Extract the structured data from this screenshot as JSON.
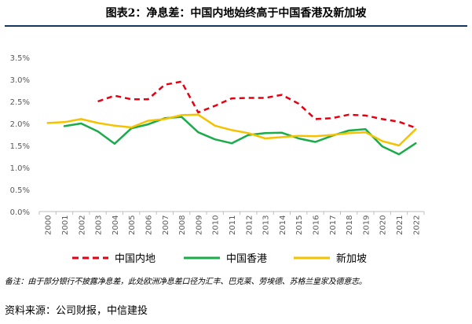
{
  "page": {
    "title": "图表2：净息差：中国内地始终高于中国香港及新加坡",
    "note": "备注：由于部分银行不披露净息差，此处欧洲净息差口径为汇丰、巴克莱、劳埃德、苏格兰皇家及德意志。",
    "source": "资料来源：公司财报，中信建投"
  },
  "chart_data": {
    "type": "line",
    "title": "图表2：净息差：中国内地始终高于中国香港及新加坡",
    "xlabel": "",
    "ylabel": "",
    "x": [
      "2000",
      "2001",
      "2002",
      "2003",
      "2004",
      "2005",
      "2006",
      "2007",
      "2008",
      "2009",
      "2010",
      "2011",
      "2012",
      "2013",
      "2014",
      "2015",
      "2016",
      "2017",
      "2018",
      "2019",
      "2020",
      "2021",
      "2022"
    ],
    "ylim": [
      0,
      3.5
    ],
    "yticks": [
      0,
      0.5,
      1.0,
      1.5,
      2.0,
      2.5,
      3.0,
      3.5
    ],
    "ytick_labels": [
      "0.0%",
      "0.5%",
      "1.0%",
      "1.5%",
      "2.0%",
      "2.5%",
      "3.0%",
      "3.5%"
    ],
    "grid": false,
    "legend_position": "bottom",
    "series": [
      {
        "name": "中国内地",
        "color": "#e60012",
        "style": "dashed",
        "values": [
          null,
          null,
          null,
          2.5,
          2.63,
          2.55,
          2.55,
          2.88,
          2.95,
          2.25,
          2.4,
          2.57,
          2.58,
          2.58,
          2.65,
          2.45,
          2.1,
          2.12,
          2.2,
          2.18,
          2.1,
          2.04,
          1.9
        ]
      },
      {
        "name": "中国香港",
        "color": "#1aab4a",
        "style": "solid",
        "values": [
          null,
          1.94,
          2.0,
          1.82,
          1.54,
          1.89,
          1.98,
          2.12,
          2.15,
          1.8,
          1.64,
          1.55,
          1.74,
          1.78,
          1.79,
          1.66,
          1.58,
          1.72,
          1.84,
          1.87,
          1.48,
          1.3,
          1.55
        ]
      },
      {
        "name": "新加坡",
        "color": "#f5c200",
        "style": "solid",
        "values": [
          2.01,
          2.03,
          2.1,
          2.01,
          1.95,
          1.91,
          2.06,
          2.1,
          2.19,
          2.2,
          1.95,
          1.85,
          1.78,
          1.66,
          1.69,
          1.72,
          1.71,
          1.74,
          1.78,
          1.8,
          1.6,
          1.5,
          1.87
        ]
      }
    ]
  }
}
